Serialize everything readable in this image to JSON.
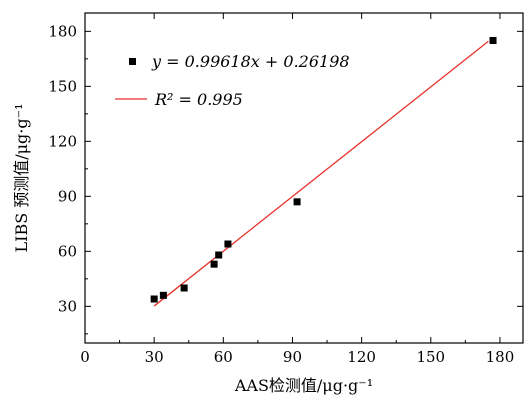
{
  "chart_data": {
    "type": "scatter",
    "xlabel": "AAS检测值/μg·g⁻¹",
    "ylabel": "LIBS 预测值/μg·g⁻¹",
    "xlim": [
      0,
      190
    ],
    "ylim": [
      10,
      190
    ],
    "xticks": [
      0,
      30,
      60,
      90,
      120,
      150,
      180
    ],
    "yticks": [
      30,
      60,
      90,
      120,
      150,
      180
    ],
    "grid": false,
    "legend_position": "top-left",
    "series": [
      {
        "kind": "points",
        "marker": "square",
        "color": "#000000",
        "legend": "y = 0.99618x + 0.26198",
        "x": [
          30,
          34,
          43,
          56,
          58,
          62,
          92,
          177
        ],
        "y": [
          34,
          36,
          40,
          53,
          58,
          64,
          87,
          175
        ]
      },
      {
        "kind": "fit-line",
        "color": "#e8302a",
        "legend": "R² = 0.995",
        "slope": 0.99618,
        "intercept": 0.26198,
        "x_range": [
          30,
          175
        ]
      }
    ]
  }
}
